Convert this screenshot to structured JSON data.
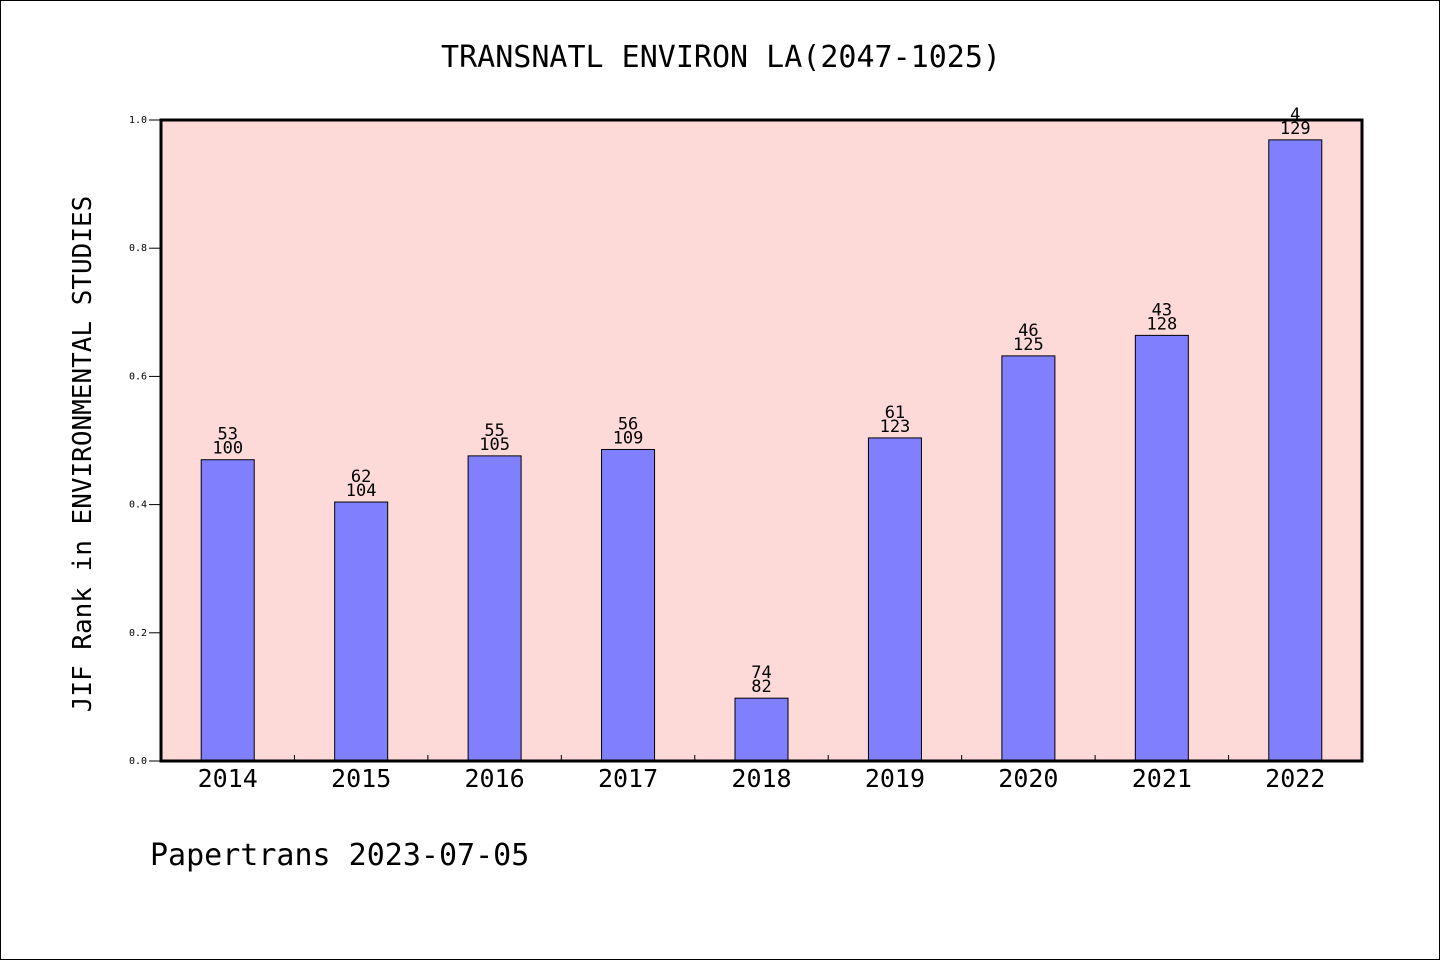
{
  "chart_data": {
    "type": "bar",
    "title": "TRANSNATL ENVIRON LA(2047-1025)",
    "xlabel": "",
    "ylabel": "JIF Rank in ENVIRONMENTAL STUDIES",
    "categories": [
      "2014",
      "2015",
      "2016",
      "2017",
      "2018",
      "2019",
      "2020",
      "2021",
      "2022"
    ],
    "values": [
      0.47,
      0.404,
      0.476,
      0.486,
      0.098,
      0.504,
      0.632,
      0.664,
      0.969
    ],
    "rank": [
      "53",
      "62",
      "55",
      "56",
      "74",
      "61",
      "46",
      "43",
      "4"
    ],
    "total": [
      "100",
      "104",
      "105",
      "109",
      "82",
      "123",
      "125",
      "128",
      "129"
    ],
    "ylim": [
      0,
      1.0
    ],
    "yticks": [
      "0.0",
      "0.2",
      "0.4",
      "0.6",
      "0.8",
      "1.0"
    ],
    "grid": false,
    "colors": {
      "plot_background": "#fdd9d7",
      "bar": "#8080ff",
      "bar_edge": "#000000"
    }
  },
  "footer": "Papertrans 2023-07-05"
}
